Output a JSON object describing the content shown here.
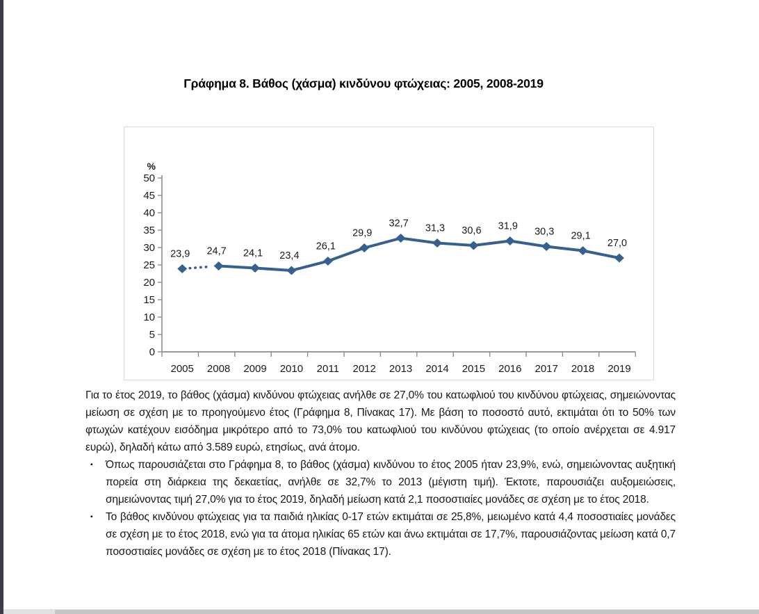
{
  "chart_data": {
    "type": "line",
    "title": "Γράφημα 8. Βάθος (χάσμα) κινδύνου φτώχειας: 2005, 2008-2019",
    "ylabel": "%",
    "xlabel": "",
    "ylim": [
      0,
      50
    ],
    "ytick_step": 5,
    "grid": false,
    "legend": false,
    "categories": [
      "2005",
      "2008",
      "2009",
      "2010",
      "2011",
      "2012",
      "2013",
      "2014",
      "2015",
      "2016",
      "2017",
      "2018",
      "2019"
    ],
    "values": [
      23.9,
      24.7,
      24.1,
      23.4,
      26.1,
      29.9,
      32.7,
      31.3,
      30.6,
      31.9,
      30.3,
      29.1,
      27.0
    ],
    "point_labels": [
      "23,9",
      "24,7",
      "24,1",
      "23,4",
      "26,1",
      "29,9",
      "32,7",
      "31,3",
      "30,6",
      "31,9",
      "30,3",
      "29,1",
      "27,0"
    ],
    "dotted_segments": [
      [
        0,
        1
      ]
    ],
    "series_color": "#36618f",
    "axis_color": "#8c8c8c",
    "label_color": "#1a1a1a",
    "marker": "diamond"
  },
  "body": {
    "paragraph": "Για το έτος 2019, το βάθος (χάσμα) κινδύνου φτώχειας ανήλθε σε 27,0% του κατωφλιού του κινδύνου φτώχειας, σημειώνοντας μείωση σε σχέση με το προηγούμενο έτος (Γράφημα 8, Πίνακας 17). Με βάση το ποσοστό αυτό, εκτιμάται ότι το 50% των φτωχών κατέχουν εισόδημα μικρότερο από το 73,0% του κατωφλιού του κινδύνου φτώχειας (το οποίο ανέρχεται σε 4.917 ευρώ), δηλαδή κάτω από 3.589 ευρώ, ετησίως, ανά άτομο.",
    "bullet_glyph": "▪",
    "bullets": [
      "Όπως παρουσιάζεται στο Γράφημα 8, το βάθος (χάσμα) κινδύνου το έτος 2005 ήταν 23,9%, ενώ, σημειώνοντας αυξητική πορεία στη διάρκεια της δεκαετίας, ανήλθε σε 32,7% το 2013 (μέγιστη τιμή). Έκτοτε, παρουσιάζει αυξομειώσεις, σημειώνοντας τιμή 27,0% για το έτος 2019, δηλαδή μείωση κατά 2,1 ποσοστιαίες μονάδες σε σχέση με το έτος 2018.",
      "Το βάθος κινδύνου φτώχειας για τα παιδιά ηλικίας 0-17 ετών εκτιμάται σε 25,8%, μειωμένο κατά 4,4 ποσοστιαίες μονάδες σε σχέση με το έτος 2018, ενώ για τα άτομα ηλικίας 65 ετών και άνω εκτιμάται σε 17,7%, παρουσιάζοντας μείωση κατά 0,7 ποσοστιαίες μονάδες σε σχέση με το έτος 2018 (Πίνακας 17)."
    ]
  }
}
